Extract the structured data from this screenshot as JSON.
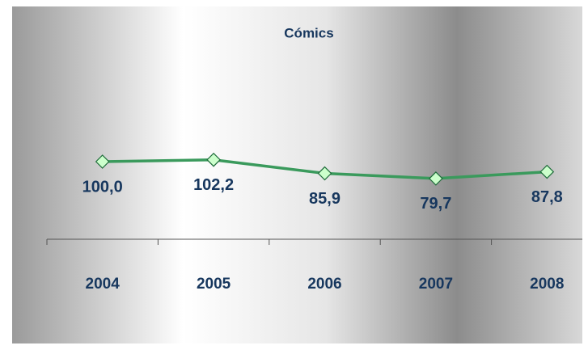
{
  "chart_data": {
    "type": "line",
    "title": "Cómics",
    "categories": [
      "2004",
      "2005",
      "2006",
      "2007",
      "2008"
    ],
    "values": [
      100.0,
      102.2,
      85.9,
      79.7,
      87.8
    ],
    "value_labels": [
      "100,0",
      "102,2",
      "85,9",
      "79,7",
      "87,8"
    ],
    "color": "#3a9a5c",
    "marker_fill": "#ccffcc",
    "ylim": [
      0,
      200
    ]
  }
}
